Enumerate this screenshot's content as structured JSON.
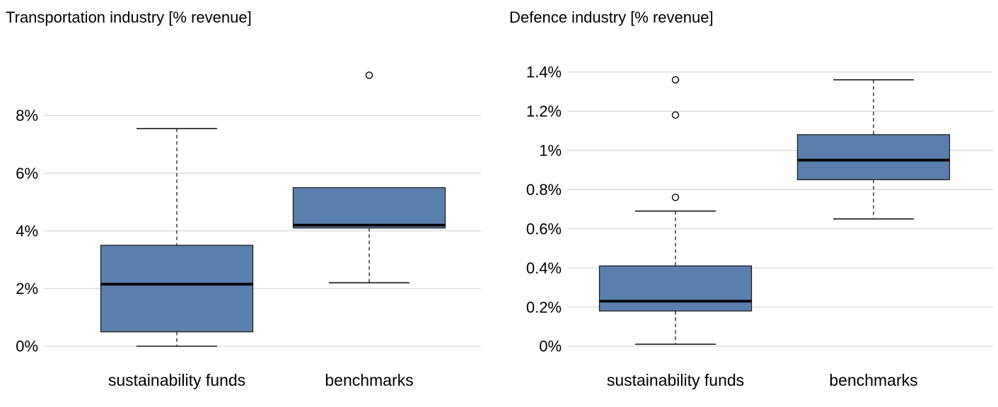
{
  "colors": {
    "background": "#ffffff",
    "box_fill": "#5b7fad",
    "box_border": "#1f1f1f",
    "median": "#000000",
    "whisker": "#1a1a1a",
    "grid": "#d9d9d9",
    "outlier_stroke": "#000000",
    "outlier_fill": "#ffffff"
  },
  "chart_data": [
    {
      "type": "boxplot",
      "title": "Transportation industry [% revenue]",
      "xlabel": "",
      "ylabel": "% revenue",
      "ylim": [
        0,
        9.9
      ],
      "grid": true,
      "yticks": [
        {
          "value": 0,
          "label": "0%"
        },
        {
          "value": 2,
          "label": "2%"
        },
        {
          "value": 4,
          "label": "4%"
        },
        {
          "value": 6,
          "label": "6%"
        },
        {
          "value": 8,
          "label": "8%"
        }
      ],
      "boxes": [
        {
          "category": "sustainability funds",
          "whisker_low": 0.0,
          "q1": 0.5,
          "median": 2.15,
          "q3": 3.5,
          "whisker_high": 7.55,
          "outliers": []
        },
        {
          "category": "benchmarks",
          "whisker_low": 2.2,
          "q1": 4.1,
          "median": 4.2,
          "q3": 5.5,
          "whisker_high": 5.5,
          "outliers": [
            9.4
          ]
        }
      ]
    },
    {
      "type": "boxplot",
      "title": "Defence industry [% revenue]",
      "xlabel": "",
      "ylabel": "% revenue",
      "ylim": [
        0,
        1.45
      ],
      "grid": true,
      "yticks": [
        {
          "value": 0,
          "label": "0%"
        },
        {
          "value": 0.2,
          "label": "0.2%"
        },
        {
          "value": 0.4,
          "label": "0.4%"
        },
        {
          "value": 0.6,
          "label": "0.6%"
        },
        {
          "value": 0.8,
          "label": "0.8%"
        },
        {
          "value": 1.0,
          "label": "1%"
        },
        {
          "value": 1.2,
          "label": "1.2%"
        },
        {
          "value": 1.4,
          "label": "1.4%"
        }
      ],
      "boxes": [
        {
          "category": "sustainability funds",
          "whisker_low": 0.01,
          "q1": 0.18,
          "median": 0.23,
          "q3": 0.41,
          "whisker_high": 0.69,
          "outliers": [
            0.76,
            1.18,
            1.36
          ]
        },
        {
          "category": "benchmarks",
          "whisker_low": 0.65,
          "q1": 0.85,
          "median": 0.95,
          "q3": 1.08,
          "whisker_high": 1.36,
          "outliers": []
        }
      ]
    }
  ]
}
